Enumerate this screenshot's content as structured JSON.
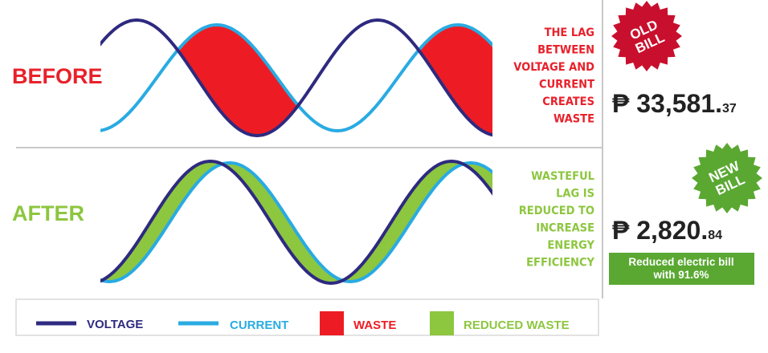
{
  "before": {
    "label": "BEFORE",
    "description": [
      "THE LAG",
      "BETWEEN",
      "VOLTAGE AND",
      "CURRENT",
      "CREATES",
      "WASTE"
    ],
    "badge": [
      "OLD",
      "BILL"
    ],
    "price": {
      "currency": "₱",
      "whole": "33,581.",
      "cents": "37"
    }
  },
  "after": {
    "label": "AFTER",
    "description": [
      "WASTEFUL",
      "LAG IS",
      "REDUCED TO",
      "INCREASE",
      "ENERGY",
      "EFFICIENCY"
    ],
    "badge": [
      "NEW",
      "BILL"
    ],
    "price": {
      "currency": "₱",
      "whole": "2,820.",
      "cents": "84"
    },
    "note": [
      "Reduced electric bill",
      "with 91.6%"
    ]
  },
  "legend": [
    "VOLTAGE",
    "CURRENT",
    "WASTE",
    "REDUCED WASTE"
  ]
}
